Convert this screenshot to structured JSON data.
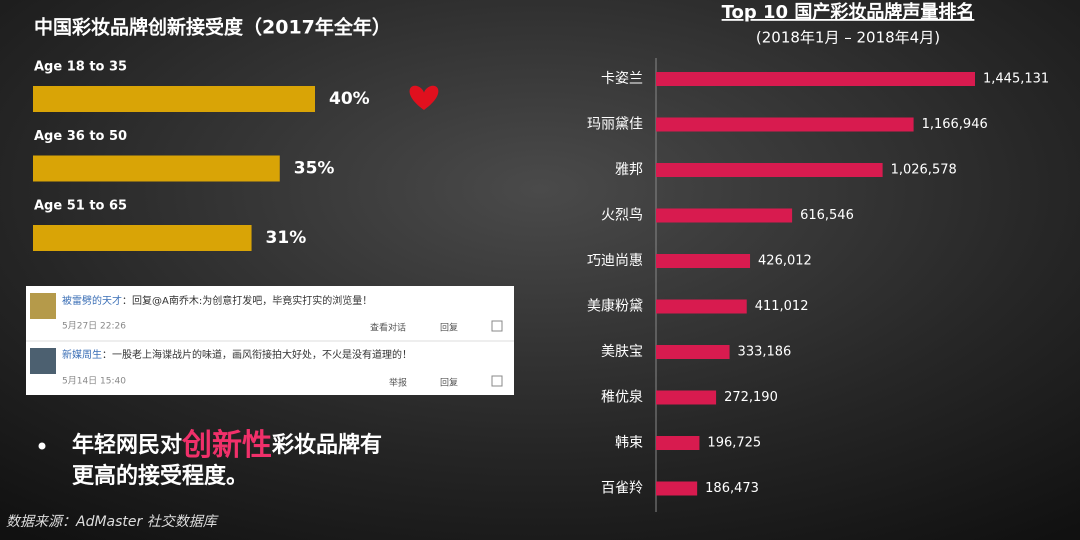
{
  "chart_data": [
    {
      "type": "bar",
      "orientation": "horizontal",
      "title": "中国彩妆品牌创新接受度（2017年全年）",
      "categories": [
        "Age 18 to 35",
        "Age 36 to 50",
        "Age 51 to 65"
      ],
      "values": [
        40,
        35,
        31
      ],
      "value_labels": [
        "40%",
        "35%",
        "31%"
      ],
      "color": "#d9a406"
    },
    {
      "type": "bar",
      "orientation": "horizontal",
      "title": "Top 10 国产彩妆品牌声量排名",
      "subtitle": "(2018年1月 – 2018年4月)",
      "categories": [
        "卡姿兰",
        "玛丽黛佳",
        "雅邦",
        "火烈鸟",
        "巧迪尚惠",
        "美康粉黛",
        "美肤宝",
        "稚优泉",
        "韩束",
        "百雀羚"
      ],
      "values": [
        1445131,
        1166946,
        1026578,
        616546,
        426012,
        411012,
        333186,
        272190,
        196725,
        186473
      ],
      "value_labels": [
        "1,445,131",
        "1,166,946",
        "1,026,578",
        "616,546",
        "426,012",
        "411,012",
        "333,186",
        "272,190",
        "196,725",
        "186,473"
      ],
      "color": "#d81b4f"
    }
  ],
  "comments": [
    {
      "user": "被雷劈的天才",
      "text": "：回复@A南乔木:为创意打发吧，毕竟实打实的浏览量！",
      "date": "5月27日 22:26",
      "actions": [
        "查看对话",
        "回复"
      ]
    },
    {
      "user": "新媒周生",
      "text": "：一股老上海谍战片的味道，画风衔接拍大好处，不火是没有道理的！",
      "date": "5月14日 15:40",
      "actions": [
        "举报",
        "回复"
      ]
    }
  ],
  "bullet": {
    "parts": [
      "年轻网民对",
      "创新性",
      "彩妆品牌有",
      "更高的接受程度。"
    ]
  },
  "source": "数据来源：AdMaster 社交数据库"
}
